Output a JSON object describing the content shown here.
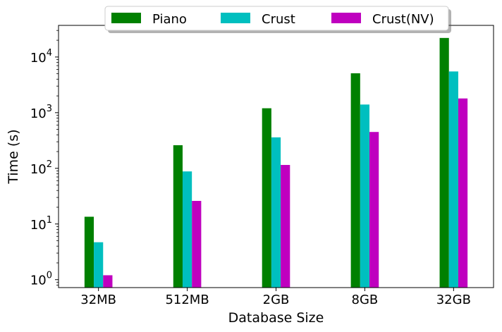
{
  "chart_data": {
    "type": "bar",
    "title": "",
    "xlabel": "Database Size",
    "ylabel": "Time (s)",
    "yscale": "log",
    "ylim": [
      0.72,
      37000
    ],
    "y_ticks": [
      {
        "value": 1,
        "base": "10",
        "exp": "0"
      },
      {
        "value": 10,
        "base": "10",
        "exp": "1"
      },
      {
        "value": 100,
        "base": "10",
        "exp": "2"
      },
      {
        "value": 1000,
        "base": "10",
        "exp": "3"
      },
      {
        "value": 10000,
        "base": "10",
        "exp": "4"
      }
    ],
    "grid": false,
    "legend_position": "top-center",
    "categories": [
      "32MB",
      "512MB",
      "2GB",
      "8GB",
      "32GB"
    ],
    "series": [
      {
        "name": "Piano",
        "color": "#008000",
        "values": [
          13.5,
          260,
          1200,
          5100,
          22000
        ]
      },
      {
        "name": "Crust",
        "color": "#00bfbf",
        "values": [
          4.7,
          88,
          360,
          1400,
          5500
        ]
      },
      {
        "name": "Crust(NV)",
        "color": "#bf00bf",
        "values": [
          1.2,
          26,
          115,
          450,
          1800
        ]
      }
    ]
  }
}
